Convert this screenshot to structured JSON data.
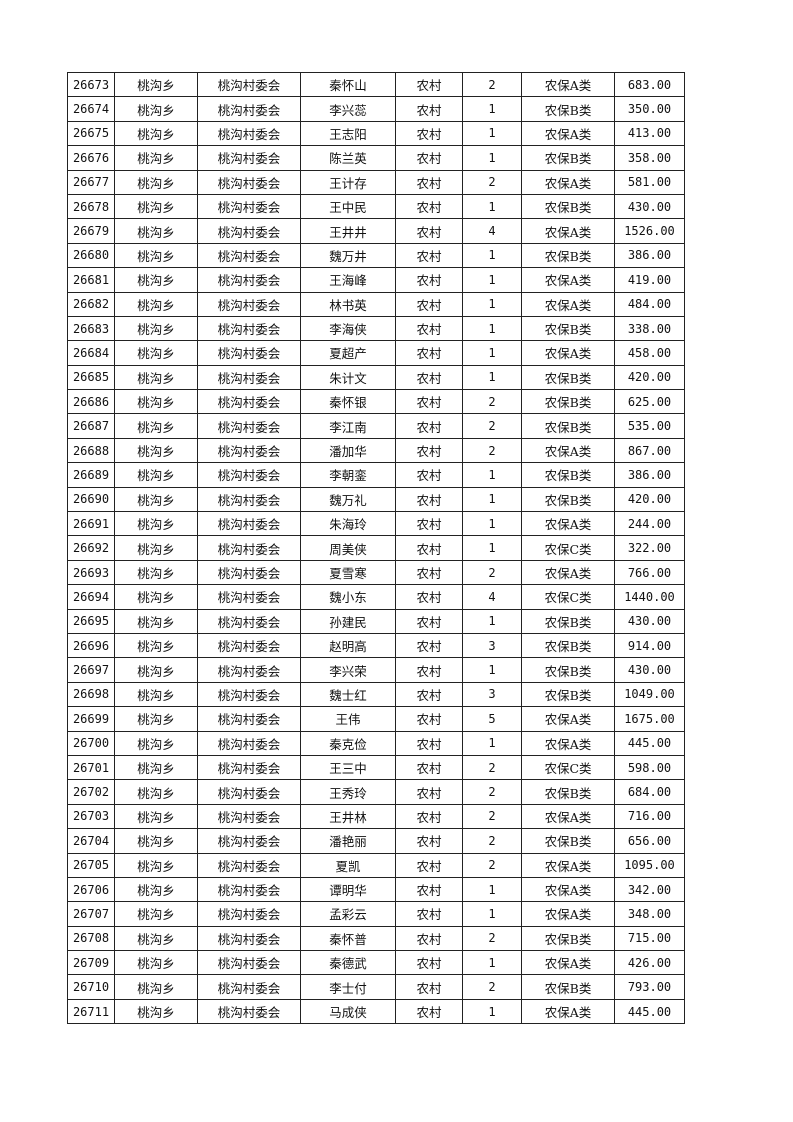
{
  "table": {
    "rows": [
      [
        "26673",
        "桃沟乡",
        "桃沟村委会",
        "秦怀山",
        "农村",
        "2",
        "农保A类",
        "683.00"
      ],
      [
        "26674",
        "桃沟乡",
        "桃沟村委会",
        "李兴蕊",
        "农村",
        "1",
        "农保B类",
        "350.00"
      ],
      [
        "26675",
        "桃沟乡",
        "桃沟村委会",
        "王志阳",
        "农村",
        "1",
        "农保A类",
        "413.00"
      ],
      [
        "26676",
        "桃沟乡",
        "桃沟村委会",
        "陈兰英",
        "农村",
        "1",
        "农保B类",
        "358.00"
      ],
      [
        "26677",
        "桃沟乡",
        "桃沟村委会",
        "王计存",
        "农村",
        "2",
        "农保A类",
        "581.00"
      ],
      [
        "26678",
        "桃沟乡",
        "桃沟村委会",
        "王中民",
        "农村",
        "1",
        "农保B类",
        "430.00"
      ],
      [
        "26679",
        "桃沟乡",
        "桃沟村委会",
        "王井井",
        "农村",
        "4",
        "农保A类",
        "1526.00"
      ],
      [
        "26680",
        "桃沟乡",
        "桃沟村委会",
        "魏万井",
        "农村",
        "1",
        "农保B类",
        "386.00"
      ],
      [
        "26681",
        "桃沟乡",
        "桃沟村委会",
        "王海峰",
        "农村",
        "1",
        "农保A类",
        "419.00"
      ],
      [
        "26682",
        "桃沟乡",
        "桃沟村委会",
        "林书英",
        "农村",
        "1",
        "农保A类",
        "484.00"
      ],
      [
        "26683",
        "桃沟乡",
        "桃沟村委会",
        "李海侠",
        "农村",
        "1",
        "农保B类",
        "338.00"
      ],
      [
        "26684",
        "桃沟乡",
        "桃沟村委会",
        "夏超产",
        "农村",
        "1",
        "农保A类",
        "458.00"
      ],
      [
        "26685",
        "桃沟乡",
        "桃沟村委会",
        "朱计文",
        "农村",
        "1",
        "农保B类",
        "420.00"
      ],
      [
        "26686",
        "桃沟乡",
        "桃沟村委会",
        "秦怀银",
        "农村",
        "2",
        "农保B类",
        "625.00"
      ],
      [
        "26687",
        "桃沟乡",
        "桃沟村委会",
        "李江南",
        "农村",
        "2",
        "农保B类",
        "535.00"
      ],
      [
        "26688",
        "桃沟乡",
        "桃沟村委会",
        "潘加华",
        "农村",
        "2",
        "农保A类",
        "867.00"
      ],
      [
        "26689",
        "桃沟乡",
        "桃沟村委会",
        "李朝銮",
        "农村",
        "1",
        "农保B类",
        "386.00"
      ],
      [
        "26690",
        "桃沟乡",
        "桃沟村委会",
        "魏万礼",
        "农村",
        "1",
        "农保B类",
        "420.00"
      ],
      [
        "26691",
        "桃沟乡",
        "桃沟村委会",
        "朱海玲",
        "农村",
        "1",
        "农保A类",
        "244.00"
      ],
      [
        "26692",
        "桃沟乡",
        "桃沟村委会",
        "周美侠",
        "农村",
        "1",
        "农保C类",
        "322.00"
      ],
      [
        "26693",
        "桃沟乡",
        "桃沟村委会",
        "夏雪寒",
        "农村",
        "2",
        "农保A类",
        "766.00"
      ],
      [
        "26694",
        "桃沟乡",
        "桃沟村委会",
        "魏小东",
        "农村",
        "4",
        "农保C类",
        "1440.00"
      ],
      [
        "26695",
        "桃沟乡",
        "桃沟村委会",
        "孙建民",
        "农村",
        "1",
        "农保B类",
        "430.00"
      ],
      [
        "26696",
        "桃沟乡",
        "桃沟村委会",
        "赵明高",
        "农村",
        "3",
        "农保B类",
        "914.00"
      ],
      [
        "26697",
        "桃沟乡",
        "桃沟村委会",
        "李兴荣",
        "农村",
        "1",
        "农保B类",
        "430.00"
      ],
      [
        "26698",
        "桃沟乡",
        "桃沟村委会",
        "魏士红",
        "农村",
        "3",
        "农保B类",
        "1049.00"
      ],
      [
        "26699",
        "桃沟乡",
        "桃沟村委会",
        "王伟",
        "农村",
        "5",
        "农保A类",
        "1675.00"
      ],
      [
        "26700",
        "桃沟乡",
        "桃沟村委会",
        "秦克俭",
        "农村",
        "1",
        "农保A类",
        "445.00"
      ],
      [
        "26701",
        "桃沟乡",
        "桃沟村委会",
        "王三中",
        "农村",
        "2",
        "农保C类",
        "598.00"
      ],
      [
        "26702",
        "桃沟乡",
        "桃沟村委会",
        "王秀玲",
        "农村",
        "2",
        "农保B类",
        "684.00"
      ],
      [
        "26703",
        "桃沟乡",
        "桃沟村委会",
        "王井林",
        "农村",
        "2",
        "农保A类",
        "716.00"
      ],
      [
        "26704",
        "桃沟乡",
        "桃沟村委会",
        "潘艳丽",
        "农村",
        "2",
        "农保B类",
        "656.00"
      ],
      [
        "26705",
        "桃沟乡",
        "桃沟村委会",
        "夏凯",
        "农村",
        "2",
        "农保A类",
        "1095.00"
      ],
      [
        "26706",
        "桃沟乡",
        "桃沟村委会",
        "谭明华",
        "农村",
        "1",
        "农保A类",
        "342.00"
      ],
      [
        "26707",
        "桃沟乡",
        "桃沟村委会",
        "孟彩云",
        "农村",
        "1",
        "农保A类",
        "348.00"
      ],
      [
        "26708",
        "桃沟乡",
        "桃沟村委会",
        "秦怀普",
        "农村",
        "2",
        "农保B类",
        "715.00"
      ],
      [
        "26709",
        "桃沟乡",
        "桃沟村委会",
        "秦德武",
        "农村",
        "1",
        "农保A类",
        "426.00"
      ],
      [
        "26710",
        "桃沟乡",
        "桃沟村委会",
        "李士付",
        "农村",
        "2",
        "农保B类",
        "793.00"
      ],
      [
        "26711",
        "桃沟乡",
        "桃沟村委会",
        "马成侠",
        "农村",
        "1",
        "农保A类",
        "445.00"
      ]
    ]
  }
}
